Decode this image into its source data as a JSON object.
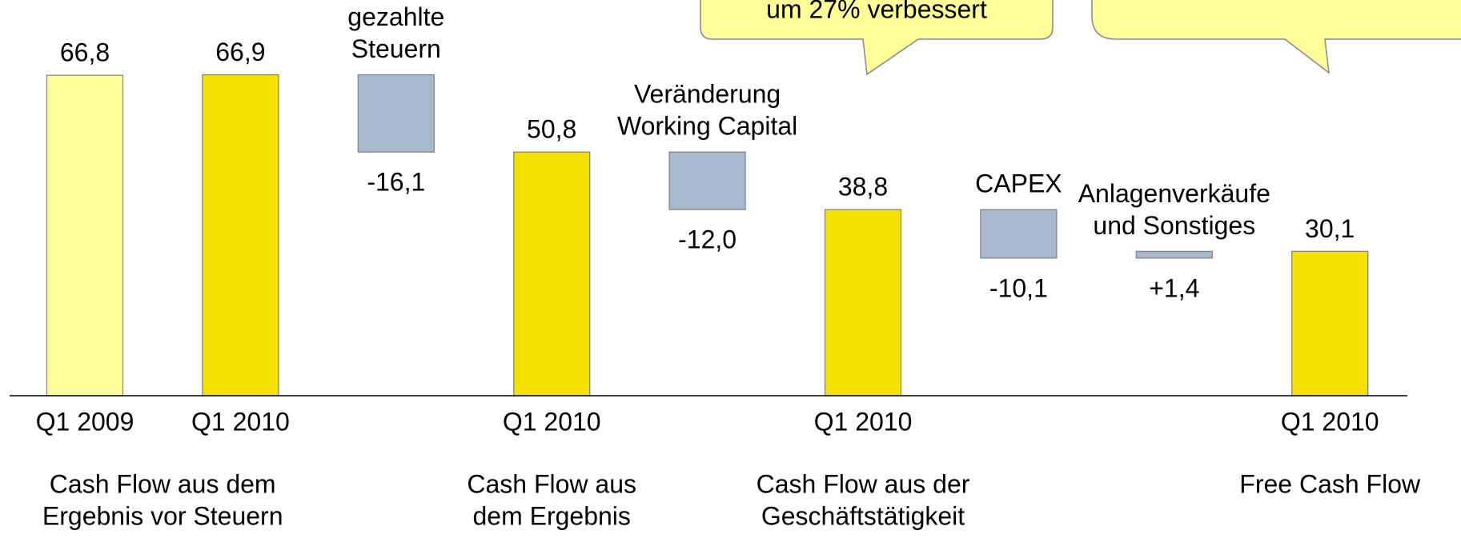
{
  "chart_data": {
    "type": "waterfall",
    "categories": [
      "Q1 2009",
      "Q1 2010",
      null,
      "Q1 2010",
      null,
      "Q1 2010",
      null,
      null,
      "Q1 2010"
    ],
    "labels": [
      [
        "Cash Flow aus dem",
        "Ergebnis vor Steuern"
      ],
      null,
      [
        "gezahlte",
        "Steuern"
      ],
      [
        "Cash Flow aus",
        "dem Ergebnis"
      ],
      [
        "Veränderung",
        "Working Capital"
      ],
      [
        "Cash Flow aus der",
        "Geschäftstätigkeit"
      ],
      [
        "CAPEX"
      ],
      [
        "Anlagenverkäufe",
        "und Sonstiges"
      ],
      [
        "Free Cash Flow"
      ]
    ],
    "kinds": [
      "total",
      "total",
      "delta",
      "total",
      "delta",
      "total",
      "delta",
      "delta",
      "total"
    ],
    "values": [
      66.8,
      66.9,
      -16.1,
      50.8,
      -12.0,
      38.8,
      -10.1,
      1.4,
      30.1
    ],
    "value_labels": [
      "66,8",
      "66,9",
      "-16,1",
      "50,8",
      "-12,0",
      "38,8",
      "-10,1",
      "+1,4",
      "30,1"
    ],
    "colors": [
      "#ffff99",
      "#f5e100",
      "#a9b9cd",
      "#f5e100",
      "#a9b9cd",
      "#f5e100",
      "#a9b9cd",
      "#a9b9cd",
      "#f5e100"
    ],
    "ylim": [
      0,
      82.5
    ],
    "annotations": [
      "um 27% verbessert"
    ]
  }
}
